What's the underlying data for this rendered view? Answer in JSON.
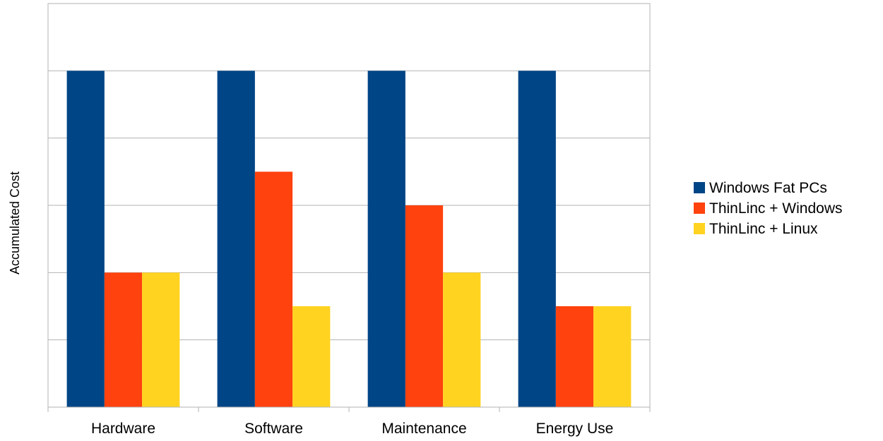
{
  "chart_data": {
    "type": "bar",
    "title": "",
    "xlabel": "",
    "ylabel": "Accumulated Cost",
    "categories": [
      "Hardware",
      "Software",
      "Maintenance",
      "Energy Use"
    ],
    "series": [
      {
        "name": "Windows Fat PCs",
        "color": "#004586",
        "values": [
          10,
          10,
          10,
          10
        ]
      },
      {
        "name": "ThinLinc + Windows",
        "color": "#ff420e",
        "values": [
          4,
          7,
          6,
          3
        ]
      },
      {
        "name": "ThinLinc + Linux",
        "color": "#ffd320",
        "values": [
          4,
          3,
          4,
          3
        ]
      }
    ],
    "ylim": [
      0,
      10
    ],
    "y_axis_top": 12,
    "y_gridlines": [
      2,
      4,
      6,
      8,
      10
    ],
    "y_tick_labels_visible": false,
    "grid": true,
    "legend_position": "right"
  }
}
